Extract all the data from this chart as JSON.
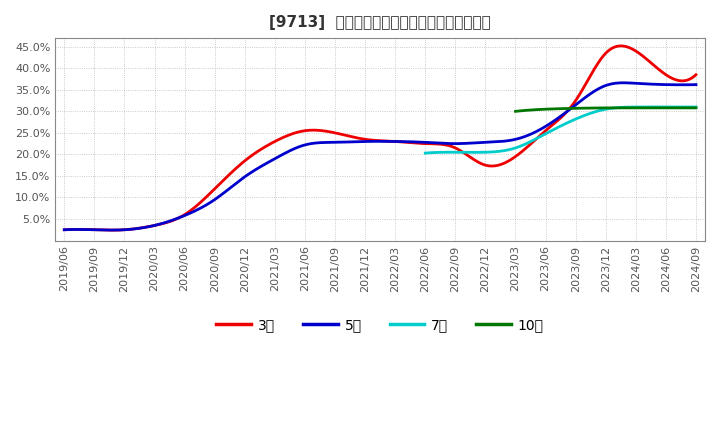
{
  "title": "[9713]  当期純利益マージンの標準偏差の推移",
  "ylim": [
    0.0,
    0.47
  ],
  "yticks": [
    0.05,
    0.1,
    0.15,
    0.2,
    0.25,
    0.3,
    0.35,
    0.4,
    0.45
  ],
  "background_color": "#ffffff",
  "plot_bg_color": "#ffffff",
  "grid_color": "#aaaaaa",
  "series": {
    "3年": {
      "color": "#ee0000",
      "points": [
        [
          "2019/06",
          0.025
        ],
        [
          "2019/09",
          0.025
        ],
        [
          "2019/12",
          0.025
        ],
        [
          "2020/03",
          0.035
        ],
        [
          "2020/06",
          0.06
        ],
        [
          "2020/09",
          0.12
        ],
        [
          "2020/12",
          0.185
        ],
        [
          "2021/03",
          0.23
        ],
        [
          "2021/06",
          0.255
        ],
        [
          "2021/09",
          0.25
        ],
        [
          "2021/12",
          0.235
        ],
        [
          "2022/03",
          0.23
        ],
        [
          "2022/06",
          0.225
        ],
        [
          "2022/09",
          0.215
        ],
        [
          "2022/12",
          0.175
        ],
        [
          "2023/03",
          0.195
        ],
        [
          "2023/06",
          0.255
        ],
        [
          "2023/09",
          0.325
        ],
        [
          "2023/12",
          0.435
        ],
        [
          "2024/03",
          0.44
        ],
        [
          "2024/06",
          0.385
        ],
        [
          "2024/09",
          0.385
        ]
      ]
    },
    "5年": {
      "color": "#0000cc",
      "points": [
        [
          "2019/06",
          0.025
        ],
        [
          "2019/09",
          0.025
        ],
        [
          "2019/12",
          0.025
        ],
        [
          "2020/03",
          0.035
        ],
        [
          "2020/06",
          0.058
        ],
        [
          "2020/09",
          0.095
        ],
        [
          "2020/12",
          0.148
        ],
        [
          "2021/03",
          0.19
        ],
        [
          "2021/06",
          0.222
        ],
        [
          "2021/09",
          0.228
        ],
        [
          "2021/12",
          0.23
        ],
        [
          "2022/03",
          0.23
        ],
        [
          "2022/06",
          0.228
        ],
        [
          "2022/09",
          0.225
        ],
        [
          "2022/12",
          0.228
        ],
        [
          "2023/03",
          0.235
        ],
        [
          "2023/06",
          0.265
        ],
        [
          "2023/09",
          0.315
        ],
        [
          "2023/12",
          0.36
        ],
        [
          "2024/03",
          0.365
        ],
        [
          "2024/06",
          0.362
        ],
        [
          "2024/09",
          0.362
        ]
      ]
    },
    "7年": {
      "color": "#00cccc",
      "points": [
        [
          "2019/06",
          null
        ],
        [
          "2019/09",
          null
        ],
        [
          "2019/12",
          null
        ],
        [
          "2020/03",
          null
        ],
        [
          "2020/06",
          null
        ],
        [
          "2020/09",
          null
        ],
        [
          "2020/12",
          null
        ],
        [
          "2021/03",
          null
        ],
        [
          "2021/06",
          null
        ],
        [
          "2021/09",
          null
        ],
        [
          "2021/12",
          null
        ],
        [
          "2022/03",
          null
        ],
        [
          "2022/06",
          0.203
        ],
        [
          "2022/09",
          0.205
        ],
        [
          "2022/12",
          0.205
        ],
        [
          "2023/03",
          0.215
        ],
        [
          "2023/06",
          0.248
        ],
        [
          "2023/09",
          0.282
        ],
        [
          "2023/12",
          0.305
        ],
        [
          "2024/03",
          0.31
        ],
        [
          "2024/06",
          0.31
        ],
        [
          "2024/09",
          0.31
        ]
      ]
    },
    "10年": {
      "color": "#007700",
      "points": [
        [
          "2019/06",
          null
        ],
        [
          "2019/09",
          null
        ],
        [
          "2019/12",
          null
        ],
        [
          "2020/03",
          null
        ],
        [
          "2020/06",
          null
        ],
        [
          "2020/09",
          null
        ],
        [
          "2020/12",
          null
        ],
        [
          "2021/03",
          null
        ],
        [
          "2021/06",
          null
        ],
        [
          "2021/09",
          null
        ],
        [
          "2021/12",
          null
        ],
        [
          "2022/03",
          null
        ],
        [
          "2022/06",
          null
        ],
        [
          "2022/09",
          null
        ],
        [
          "2022/12",
          null
        ],
        [
          "2023/03",
          0.3
        ],
        [
          "2023/06",
          0.305
        ],
        [
          "2023/09",
          0.307
        ],
        [
          "2023/12",
          0.308
        ],
        [
          "2024/03",
          0.308
        ],
        [
          "2024/06",
          0.308
        ],
        [
          "2024/09",
          0.308
        ]
      ]
    }
  },
  "legend_entries": [
    "3年",
    "5年",
    "7年",
    "10年"
  ],
  "legend_colors": [
    "#ee0000",
    "#0000cc",
    "#00cccc",
    "#007700"
  ]
}
